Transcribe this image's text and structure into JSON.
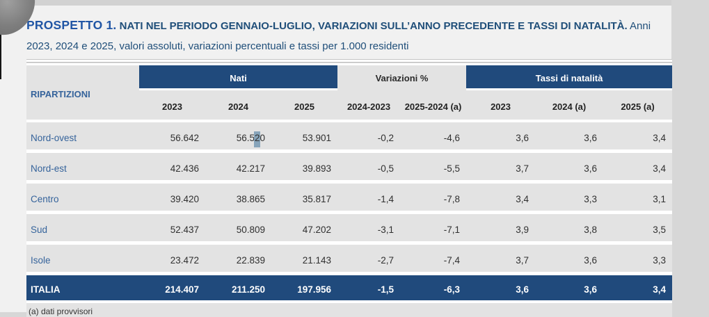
{
  "header": {
    "title_lead": "PROSPETTO 1.",
    "title_caps": " NATI NEL PERIODO GENNAIO-LUGLIO, VARIAZIONI SULL’ANNO PRECEDENTE E TASSI DI NATALITÀ.",
    "subtitle": " Anni 2023, 2024 e 2025, valori assoluti, variazioni percentuali e tassi per 1.000 residenti"
  },
  "table": {
    "row_header_label": "RIPARTIZIONI",
    "groups": [
      {
        "label": "Nati",
        "style": "navy",
        "cols": [
          "2023",
          "2024",
          "2025"
        ]
      },
      {
        "label": "Variazioni %",
        "style": "gray",
        "cols": [
          "2024-2023",
          "2025-2024 (a)"
        ]
      },
      {
        "label": "Tassi di natalità",
        "style": "navy",
        "cols": [
          "2023",
          "2024 (a)",
          "2025 (a)"
        ]
      }
    ],
    "rows": [
      {
        "label": "Nord-ovest",
        "values": [
          "56.642",
          {
            "pre": "56.5",
            "hl": "2",
            "post": "0"
          },
          "53.901",
          "-0,2",
          "-4,6",
          "3,6",
          "3,6",
          "3,4"
        ]
      },
      {
        "label": "Nord-est",
        "values": [
          "42.436",
          "42.217",
          "39.893",
          "-0,5",
          "-5,5",
          "3,7",
          "3,6",
          "3,4"
        ]
      },
      {
        "label": "Centro",
        "values": [
          "39.420",
          "38.865",
          "35.817",
          "-1,4",
          "-7,8",
          "3,4",
          "3,3",
          "3,1"
        ]
      },
      {
        "label": "Sud",
        "values": [
          "52.437",
          "50.809",
          "47.202",
          "-3,1",
          "-7,1",
          "3,9",
          "3,8",
          "3,5"
        ]
      },
      {
        "label": "Isole",
        "values": [
          "23.472",
          "22.839",
          "21.143",
          "-2,7",
          "-7,4",
          "3,7",
          "3,6",
          "3,3"
        ]
      }
    ],
    "total_row": {
      "label": "ITALIA",
      "values": [
        "214.407",
        "211.250",
        "197.956",
        "-1,5",
        "-6,3",
        "3,6",
        "3,6",
        "3,4"
      ]
    },
    "footnote": "(a) dati provvisori"
  },
  "colors": {
    "navy_band": "#204a7c",
    "row_gray": "#e3e3e3",
    "label_blue": "#35639b",
    "title_blue": "#2156a5",
    "selection_highlight": "#87a4ba"
  },
  "artifacts": {
    "corner_blob": "gray-circle-fragment-top-left",
    "selection": "blue-gray selection square behind digit 2 of 56.520"
  }
}
